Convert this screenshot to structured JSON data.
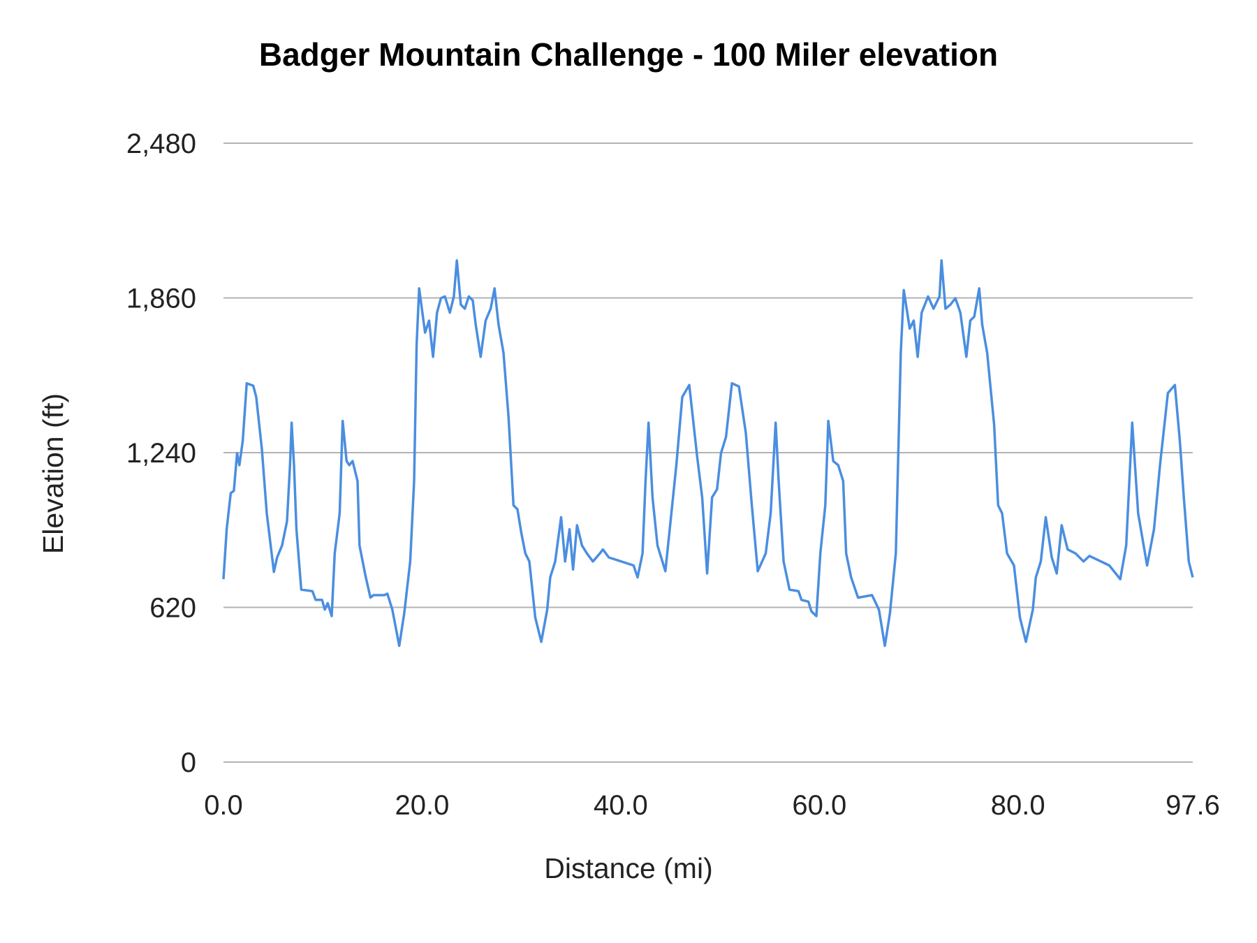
{
  "chart_data": {
    "type": "line",
    "title": "Badger Mountain Challenge - 100 Miler elevation",
    "xlabel": "Distance (mi)",
    "ylabel": "Elevation (ft)",
    "xlim": [
      0,
      97.6
    ],
    "ylim": [
      0,
      2480
    ],
    "x_ticks": [
      "0.0",
      "20.0",
      "40.0",
      "60.0",
      "80.0",
      "97.6"
    ],
    "x_tick_values": [
      0,
      20,
      40,
      60,
      80,
      97.6
    ],
    "y_ticks": [
      "0",
      "620",
      "1,240",
      "1,860",
      "2,480"
    ],
    "y_tick_values": [
      0,
      620,
      1240,
      1860,
      2480
    ],
    "grid": "horizontal",
    "legend": "none",
    "color": "#4a8ee0",
    "series": [
      {
        "x": [
          0,
          0.32,
          0.73,
          1.05,
          1.37,
          1.6,
          1.94,
          2.34,
          3.0,
          3.3,
          3.87,
          4.36,
          5.08,
          5.4,
          5.9,
          6.4,
          6.7,
          6.86,
          7.1,
          7.35,
          7.83,
          8.96,
          9.28,
          9.93,
          10.2,
          10.5,
          10.9,
          11.2,
          11.7,
          12.0,
          12.4,
          12.67,
          13.0,
          13.5,
          13.7,
          14.3,
          14.8,
          15.1,
          16.2,
          16.5,
          17.0,
          17.7,
          18.2,
          18.8,
          19.2,
          19.45,
          19.7,
          20.3,
          20.7,
          21.1,
          21.5,
          21.9,
          22.3,
          22.8,
          23.2,
          23.5,
          23.9,
          24.3,
          24.7,
          25.1,
          25.4,
          25.9,
          26.4,
          26.9,
          27.3,
          27.7,
          28.2,
          28.7,
          29.2,
          29.6,
          30.0,
          30.4,
          30.8,
          31.4,
          32.0,
          32.6,
          32.9,
          33.4,
          34.0,
          34.4,
          34.85,
          35.2,
          35.6,
          36.1,
          36.6,
          37.2,
          37.9,
          38.2,
          38.8,
          41.3,
          41.7,
          42.2,
          42.5,
          42.8,
          43.2,
          43.7,
          44.5,
          45.1,
          45.6,
          46.2,
          46.9,
          47.7,
          48.2,
          48.7,
          49.2,
          49.7,
          50.1,
          50.6,
          51.2,
          51.9,
          52.6,
          53.2,
          53.8,
          54.6,
          55.1,
          55.6,
          55.9,
          56.4,
          57.0,
          57.9,
          58.2,
          58.9,
          59.2,
          59.7,
          60.1,
          60.6,
          60.9,
          61.4,
          61.9,
          62.4,
          62.7,
          63.2,
          63.9,
          65.3,
          66.0,
          66.6,
          67.1,
          67.7,
          68.2,
          68.5,
          69.1,
          69.5,
          69.9,
          70.3,
          70.95,
          71.5,
          72.1,
          72.3,
          72.7,
          73.2,
          73.7,
          74.2,
          74.8,
          75.2,
          75.6,
          76.1,
          76.4,
          76.9,
          77.6,
          78.0,
          78.4,
          78.9,
          79.6,
          80.2,
          80.8,
          81.5,
          81.8,
          82.3,
          82.8,
          83.4,
          83.9,
          84.4,
          85.0,
          85.8,
          86.6,
          87.2,
          89.2,
          90.3,
          90.9,
          91.5,
          92.1,
          93.0,
          93.7,
          94.3,
          95.1,
          95.8,
          96.3,
          96.7,
          97.2,
          97.6
        ],
        "y": [
          733,
          933,
          1078,
          1087,
          1238,
          1190,
          1287,
          1518,
          1508,
          1463,
          1254,
          997,
          762,
          820,
          868,
          965,
          1190,
          1360,
          1190,
          933,
          691,
          685,
          650,
          650,
          611,
          637,
          585,
          836,
          997,
          1367,
          1206,
          1190,
          1206,
          1126,
          868,
          746,
          659,
          669,
          669,
          675,
          611,
          466,
          595,
          804,
          1126,
          1673,
          1898,
          1721,
          1769,
          1624,
          1801,
          1859,
          1866,
          1801,
          1866,
          2010,
          1833,
          1817,
          1866,
          1850,
          1753,
          1624,
          1769,
          1817,
          1898,
          1753,
          1640,
          1383,
          1029,
          1013,
          917,
          836,
          804,
          579,
          482,
          611,
          740,
          804,
          981,
          804,
          933,
          772,
          949,
          868,
          836,
          804,
          836,
          852,
          820,
          788,
          740,
          836,
          1126,
          1360,
          1061,
          868,
          765,
          997,
          1190,
          1463,
          1511,
          1222,
          1061,
          756,
          1061,
          1093,
          1238,
          1303,
          1518,
          1505,
          1319,
          1029,
          765,
          836,
          997,
          1360,
          1126,
          804,
          691,
          685,
          650,
          643,
          604,
          585,
          836,
          1029,
          1367,
          1206,
          1190,
          1126,
          836,
          740,
          659,
          669,
          611,
          466,
          595,
          836,
          1640,
          1891,
          1737,
          1769,
          1624,
          1801,
          1866,
          1817,
          1866,
          2010,
          1817,
          1833,
          1859,
          1801,
          1624,
          1769,
          1785,
          1898,
          1753,
          1640,
          1351,
          1029,
          997,
          836,
          788,
          579,
          482,
          611,
          740,
          804,
          981,
          820,
          756,
          949,
          852,
          836,
          804,
          826,
          788,
          733,
          868,
          1360,
          997,
          788,
          933,
          1190,
          1479,
          1511,
          1287,
          1061,
          804,
          740
        ]
      }
    ]
  }
}
